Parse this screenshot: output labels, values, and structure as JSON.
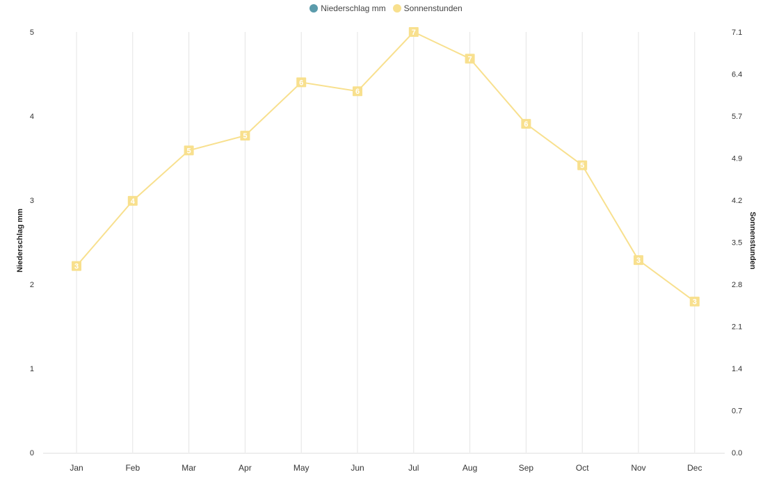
{
  "legend": [
    {
      "name": "Niederschlag mm",
      "color": "#5b9bab"
    },
    {
      "name": "Sonnenstunden",
      "color": "#f8e08e"
    }
  ],
  "chart_data": {
    "type": "line",
    "categories": [
      "Jan",
      "Feb",
      "Mar",
      "Apr",
      "May",
      "Jun",
      "Jul",
      "Aug",
      "Sep",
      "Oct",
      "Nov",
      "Dec"
    ],
    "y_left": {
      "label": "Niederschlag mm",
      "ticks": [
        "0",
        "1",
        "2",
        "3",
        "4",
        "5"
      ],
      "range": [
        0,
        5
      ]
    },
    "y_right": {
      "label": "Sonnenstunden",
      "ticks": [
        "0.0",
        "0.7",
        "1.4",
        "2.1",
        "2.8",
        "3.5",
        "4.2",
        "4.9",
        "5.7",
        "6.4",
        "7.1"
      ],
      "range": [
        0,
        7.1
      ]
    },
    "series": [
      {
        "name": "Sonnenstunden",
        "axis": "right",
        "color": "#f8e08e",
        "values": [
          3.15,
          4.25,
          5.1,
          5.35,
          6.25,
          6.1,
          7.1,
          6.65,
          5.55,
          4.85,
          3.25,
          2.55
        ],
        "labels": [
          "3",
          "4",
          "5",
          "5",
          "6",
          "6",
          "7",
          "7",
          "6",
          "5",
          "3",
          "3"
        ]
      }
    ],
    "grid": "vertical"
  }
}
